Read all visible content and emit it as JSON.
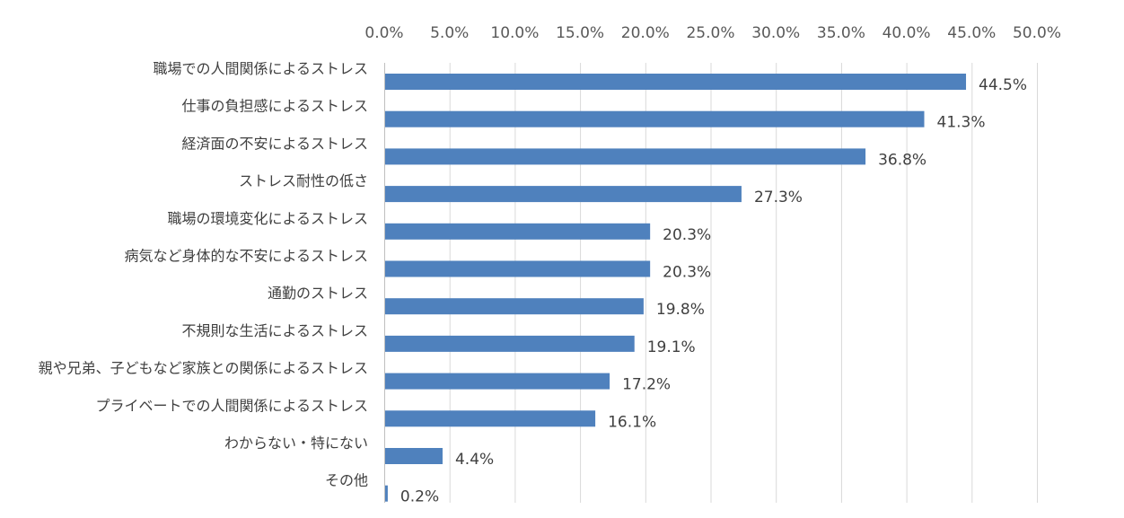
{
  "chart_data": {
    "type": "bar",
    "orientation": "horizontal",
    "categories": [
      "職場での人間関係によるストレス",
      "仕事の負担感によるストレス",
      "経済面の不安によるストレス",
      "ストレス耐性の低さ",
      "職場の環境変化によるストレス",
      "病気など身体的な不安によるストレス",
      "通勤のストレス",
      "不規則な生活によるストレス",
      "親や兄弟、子どもなど家族との関係によるストレス",
      "プライベートでの人間関係によるストレス",
      "わからない・特にない",
      "その他"
    ],
    "values": [
      44.5,
      41.3,
      36.8,
      27.3,
      20.3,
      20.3,
      19.8,
      19.1,
      17.2,
      16.1,
      4.4,
      0.2
    ],
    "data_labels": [
      "44.5%",
      "41.3%",
      "36.8%",
      "27.3%",
      "20.3%",
      "20.3%",
      "19.8%",
      "19.1%",
      "17.2%",
      "16.1%",
      "4.4%",
      "0.2%"
    ],
    "xlim": [
      0,
      50
    ],
    "x_ticks": [
      0,
      5,
      10,
      15,
      20,
      25,
      30,
      35,
      40,
      45,
      50
    ],
    "x_tick_labels": [
      "0.0%",
      "5.0%",
      "10.0%",
      "15.0%",
      "20.0%",
      "25.0%",
      "30.0%",
      "35.0%",
      "40.0%",
      "45.0%",
      "50.0%"
    ],
    "x_axis_position": "top",
    "grid": true,
    "legend": "none",
    "bar_color": "#4f81bd",
    "title": "",
    "xlabel": "",
    "ylabel": ""
  }
}
